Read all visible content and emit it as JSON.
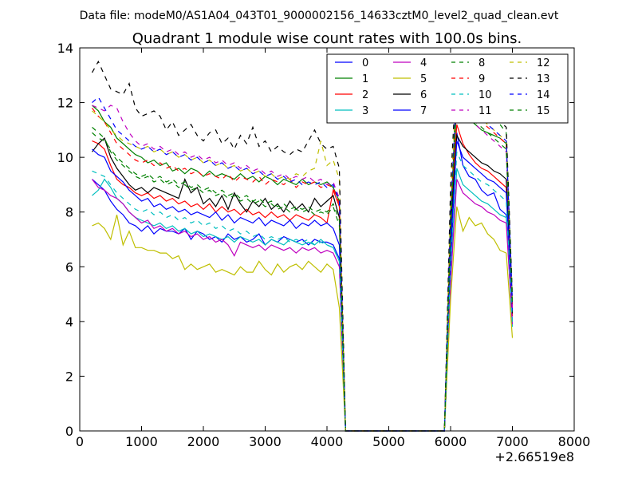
{
  "figure": {
    "suptitle": "Data file: modeM0/AS1A04_043T01_9000002156_14633cztM0_level2_quad_clean.evt"
  },
  "chart_data": {
    "type": "line",
    "title": "Quadrant 1 module wise count rates with 100.0s bins.",
    "xlabel": "",
    "ylabel": "",
    "x_offset_label": "+2.66519e8",
    "xlim": [
      0,
      8000
    ],
    "ylim": [
      0,
      14
    ],
    "xticks": [
      0,
      1000,
      2000,
      3000,
      4000,
      5000,
      6000,
      7000,
      8000
    ],
    "yticks": [
      0,
      2,
      4,
      6,
      8,
      10,
      12,
      14
    ],
    "grid": false,
    "legend_position": "top-right",
    "legend_columns": 4,
    "x": [
      200,
      300,
      400,
      500,
      600,
      700,
      800,
      900,
      1000,
      1100,
      1200,
      1300,
      1400,
      1500,
      1600,
      1700,
      1800,
      1900,
      2000,
      2100,
      2200,
      2300,
      2400,
      2500,
      2600,
      2700,
      2800,
      2900,
      3000,
      3100,
      3200,
      3300,
      3400,
      3500,
      3600,
      3700,
      3800,
      3900,
      4000,
      4100,
      4200,
      4300,
      4400,
      4500,
      4600,
      4700,
      4800,
      4900,
      5000,
      5100,
      5200,
      5300,
      5400,
      5500,
      5600,
      5700,
      5800,
      5900,
      6000,
      6100,
      6200,
      6300,
      6400,
      6500,
      6600,
      6700,
      6800,
      6900,
      7000
    ],
    "series": [
      {
        "name": "0",
        "color": "#0000ff",
        "dash": "solid",
        "values": [
          9.2,
          9.0,
          8.8,
          8.4,
          8.1,
          7.9,
          7.6,
          7.5,
          7.3,
          7.5,
          7.2,
          7.4,
          7.3,
          7.3,
          7.2,
          7.4,
          7.0,
          7.3,
          7.2,
          7.0,
          7.1,
          6.9,
          7.2,
          7.0,
          7.1,
          6.9,
          7.0,
          7.2,
          6.8,
          7.0,
          6.9,
          7.1,
          7.0,
          6.9,
          7.0,
          6.8,
          7.0,
          6.9,
          6.9,
          6.8,
          6.3,
          0,
          0,
          0,
          0,
          0,
          0,
          0,
          0,
          0,
          0,
          0,
          0,
          0,
          0,
          0,
          0,
          0,
          6.0,
          10.9,
          9.7,
          9.3,
          9.2,
          8.8,
          8.6,
          8.7,
          8.1,
          7.9,
          4.0
        ]
      },
      {
        "name": "1",
        "color": "#008000",
        "dash": "solid",
        "values": [
          11.9,
          11.7,
          11.3,
          11.1,
          10.7,
          10.5,
          10.3,
          10.1,
          10.0,
          9.8,
          9.9,
          9.7,
          9.8,
          9.5,
          9.6,
          9.4,
          9.6,
          9.5,
          9.3,
          9.5,
          9.3,
          9.4,
          9.3,
          9.2,
          9.4,
          9.2,
          9.3,
          9.1,
          9.3,
          9.2,
          9.0,
          9.2,
          9.1,
          9.0,
          9.2,
          9.0,
          9.1,
          9.0,
          9.1,
          8.9,
          8.4,
          0,
          0,
          0,
          0,
          0,
          0,
          0,
          0,
          0,
          0,
          0,
          0,
          0,
          0,
          0,
          0,
          0,
          8.0,
          11.9,
          11.5,
          11.4,
          11.2,
          11.0,
          10.9,
          10.8,
          10.7,
          10.5,
          4.6
        ]
      },
      {
        "name": "2",
        "color": "#ff0000",
        "dash": "solid",
        "values": [
          10.6,
          10.5,
          10.3,
          9.7,
          9.2,
          9.0,
          8.9,
          8.7,
          8.6,
          8.7,
          8.5,
          8.6,
          8.4,
          8.5,
          8.3,
          8.4,
          8.2,
          8.3,
          8.1,
          8.3,
          8.0,
          8.2,
          8.0,
          8.1,
          7.9,
          8.1,
          7.9,
          8.0,
          7.8,
          8.0,
          7.8,
          7.9,
          7.7,
          7.9,
          7.8,
          7.7,
          7.9,
          7.8,
          7.6,
          8.8,
          8.2,
          0,
          0,
          0,
          0,
          0,
          0,
          0,
          0,
          0,
          0,
          0,
          0,
          0,
          0,
          0,
          0,
          0,
          7.6,
          11.2,
          10.5,
          10.1,
          9.8,
          9.6,
          9.5,
          9.3,
          9.1,
          8.9,
          4.2
        ]
      },
      {
        "name": "3",
        "color": "#00bfbf",
        "dash": "solid",
        "values": [
          8.6,
          8.8,
          9.2,
          8.9,
          8.5,
          8.3,
          8.0,
          7.8,
          7.7,
          7.6,
          7.5,
          7.6,
          7.4,
          7.5,
          7.3,
          7.4,
          7.2,
          7.3,
          7.1,
          7.2,
          7.1,
          7.0,
          7.1,
          6.9,
          7.1,
          7.0,
          6.9,
          7.0,
          6.8,
          7.0,
          6.9,
          6.8,
          7.0,
          6.9,
          6.8,
          6.9,
          6.8,
          7.0,
          6.8,
          6.7,
          6.2,
          0,
          0,
          0,
          0,
          0,
          0,
          0,
          0,
          0,
          0,
          0,
          0,
          0,
          0,
          0,
          0,
          0,
          5.5,
          9.6,
          9.0,
          8.8,
          8.6,
          8.4,
          8.3,
          8.1,
          7.9,
          7.8,
          3.8
        ]
      },
      {
        "name": "4",
        "color": "#bf00bf",
        "dash": "solid",
        "values": [
          9.2,
          8.9,
          8.8,
          8.6,
          8.5,
          8.3,
          8.0,
          7.8,
          7.6,
          7.7,
          7.4,
          7.5,
          7.3,
          7.4,
          7.2,
          7.3,
          7.1,
          7.2,
          7.0,
          7.1,
          6.9,
          7.0,
          6.8,
          6.4,
          6.9,
          6.8,
          6.7,
          6.8,
          6.6,
          6.8,
          6.7,
          6.6,
          6.7,
          6.5,
          6.7,
          6.6,
          6.7,
          6.5,
          6.6,
          6.5,
          6.0,
          0,
          0,
          0,
          0,
          0,
          0,
          0,
          0,
          0,
          0,
          0,
          0,
          0,
          0,
          0,
          0,
          0,
          5.4,
          9.2,
          8.7,
          8.5,
          8.3,
          8.2,
          8.0,
          7.9,
          7.7,
          7.6,
          3.9
        ]
      },
      {
        "name": "5",
        "color": "#bfbf00",
        "dash": "solid",
        "values": [
          7.5,
          7.6,
          7.4,
          7.0,
          7.9,
          6.8,
          7.3,
          6.7,
          6.7,
          6.6,
          6.6,
          6.5,
          6.5,
          6.3,
          6.4,
          5.9,
          6.1,
          5.9,
          6.0,
          6.1,
          5.8,
          5.9,
          5.8,
          5.7,
          6.0,
          5.8,
          5.8,
          6.2,
          5.9,
          5.7,
          6.1,
          5.8,
          6.0,
          6.1,
          5.9,
          6.2,
          6.0,
          5.8,
          6.1,
          5.9,
          4.5,
          0,
          0,
          0,
          0,
          0,
          0,
          0,
          0,
          0,
          0,
          0,
          0,
          0,
          0,
          0,
          0,
          0,
          4.8,
          8.2,
          7.3,
          7.8,
          7.5,
          7.6,
          7.2,
          7.0,
          6.6,
          6.5,
          3.4
        ]
      },
      {
        "name": "6",
        "color": "#000000",
        "dash": "solid",
        "values": [
          10.2,
          10.5,
          10.7,
          10.0,
          9.6,
          9.3,
          9.0,
          8.8,
          8.9,
          8.7,
          8.9,
          8.8,
          8.7,
          8.6,
          8.5,
          9.2,
          8.7,
          8.9,
          8.3,
          8.5,
          8.2,
          8.6,
          8.1,
          8.7,
          8.3,
          8.0,
          8.4,
          8.2,
          8.5,
          8.1,
          8.3,
          8.0,
          8.4,
          8.1,
          8.3,
          8.0,
          8.5,
          8.2,
          8.4,
          8.6,
          7.8,
          0,
          0,
          0,
          0,
          0,
          0,
          0,
          0,
          0,
          0,
          0,
          0,
          0,
          0,
          0,
          0,
          0,
          7.4,
          10.8,
          10.4,
          10.2,
          10.0,
          9.8,
          9.7,
          9.5,
          9.4,
          9.2,
          4.3
        ]
      },
      {
        "name": "7",
        "color": "#0000ff",
        "dash": "solid",
        "values": [
          10.3,
          10.1,
          10.0,
          9.5,
          9.3,
          9.1,
          8.8,
          8.6,
          8.4,
          8.5,
          8.2,
          8.3,
          8.1,
          8.2,
          8.0,
          8.1,
          7.9,
          8.0,
          7.9,
          7.8,
          8.0,
          7.7,
          7.9,
          7.6,
          7.8,
          7.7,
          7.6,
          7.8,
          7.5,
          7.7,
          7.6,
          7.5,
          7.7,
          7.4,
          7.6,
          7.5,
          7.7,
          7.5,
          7.6,
          7.4,
          6.8,
          0,
          0,
          0,
          0,
          0,
          0,
          0,
          0,
          0,
          0,
          0,
          0,
          0,
          0,
          0,
          0,
          0,
          6.8,
          10.6,
          10.0,
          9.8,
          9.6,
          9.4,
          9.2,
          9.1,
          8.9,
          8.7,
          4.4
        ]
      },
      {
        "name": "8",
        "color": "#008000",
        "dash": "dashed",
        "values": [
          11.1,
          10.9,
          10.7,
          10.2,
          9.9,
          9.7,
          9.5,
          9.3,
          9.2,
          9.3,
          9.1,
          9.2,
          9.0,
          9.1,
          8.9,
          9.0,
          8.8,
          8.9,
          8.7,
          8.8,
          8.6,
          8.7,
          8.5,
          8.6,
          8.4,
          8.5,
          8.3,
          8.4,
          8.2,
          8.3,
          8.1,
          8.2,
          8.0,
          8.1,
          8.0,
          8.1,
          7.9,
          8.0,
          7.9,
          8.2,
          7.5,
          0,
          0,
          0,
          0,
          0,
          0,
          0,
          0,
          0,
          0,
          0,
          0,
          0,
          0,
          0,
          0,
          0,
          7.2,
          13.2,
          12.6,
          12.3,
          12.0,
          11.8,
          11.6,
          11.4,
          11.2,
          10.9,
          4.8
        ]
      },
      {
        "name": "9",
        "color": "#ff0000",
        "dash": "dashed",
        "values": [
          11.8,
          11.5,
          11.3,
          10.9,
          10.5,
          10.3,
          10.1,
          9.9,
          9.8,
          9.9,
          9.7,
          9.8,
          9.6,
          9.7,
          9.5,
          9.6,
          9.4,
          9.5,
          9.3,
          9.4,
          9.3,
          9.2,
          9.4,
          9.1,
          9.3,
          9.2,
          9.1,
          9.3,
          9.0,
          9.2,
          9.1,
          9.0,
          9.2,
          8.9,
          9.1,
          9.0,
          9.1,
          8.9,
          9.0,
          8.9,
          8.3,
          0,
          0,
          0,
          0,
          0,
          0,
          0,
          0,
          0,
          0,
          0,
          0,
          0,
          0,
          0,
          0,
          0,
          7.8,
          12.6,
          11.9,
          11.7,
          11.5,
          11.3,
          11.1,
          10.9,
          10.7,
          10.5,
          4.6
        ]
      },
      {
        "name": "10",
        "color": "#00bfbf",
        "dash": "dashed",
        "values": [
          9.5,
          9.4,
          9.3,
          9.0,
          8.7,
          8.5,
          8.3,
          8.1,
          8.0,
          8.1,
          7.9,
          8.0,
          7.8,
          7.9,
          7.7,
          7.8,
          7.6,
          7.7,
          7.5,
          7.6,
          7.4,
          7.5,
          7.3,
          7.4,
          7.2,
          7.3,
          7.1,
          7.2,
          7.0,
          7.1,
          7.0,
          7.1,
          6.9,
          7.0,
          6.9,
          7.0,
          6.8,
          6.9,
          6.8,
          6.7,
          6.2,
          0,
          0,
          0,
          0,
          0,
          0,
          0,
          0,
          0,
          0,
          0,
          0,
          0,
          0,
          0,
          0,
          0,
          6.0,
          10.2,
          9.7,
          9.5,
          9.3,
          9.1,
          9.0,
          8.8,
          8.6,
          8.4,
          3.9
        ]
      },
      {
        "name": "11",
        "color": "#bf00bf",
        "dash": "dashed",
        "values": [
          11.9,
          11.8,
          11.7,
          11.9,
          11.8,
          11.3,
          10.9,
          10.6,
          10.4,
          10.5,
          10.3,
          10.4,
          10.2,
          10.3,
          10.1,
          10.2,
          10.0,
          10.1,
          9.9,
          10.0,
          9.8,
          9.9,
          9.7,
          9.8,
          9.6,
          9.7,
          9.5,
          9.6,
          9.4,
          9.5,
          9.3,
          9.4,
          9.2,
          9.3,
          9.2,
          9.3,
          9.1,
          9.2,
          9.0,
          9.1,
          8.5,
          0,
          0,
          0,
          0,
          0,
          0,
          0,
          0,
          0,
          0,
          0,
          0,
          0,
          0,
          0,
          0,
          0,
          8.2,
          12.2,
          11.6,
          11.4,
          11.2,
          11.0,
          10.8,
          10.6,
          10.4,
          10.2,
          4.5
        ]
      },
      {
        "name": "12",
        "color": "#bfbf00",
        "dash": "dashed",
        "values": [
          11.7,
          11.5,
          11.3,
          11.0,
          10.8,
          10.6,
          10.5,
          10.4,
          10.3,
          10.4,
          10.2,
          10.3,
          10.1,
          10.2,
          10.0,
          10.1,
          9.9,
          10.0,
          9.8,
          9.9,
          9.7,
          9.8,
          9.6,
          9.7,
          9.5,
          9.6,
          9.4,
          9.5,
          9.3,
          9.4,
          9.2,
          9.3,
          9.2,
          9.4,
          9.3,
          9.5,
          9.6,
          10.6,
          9.7,
          9.9,
          9.2,
          0,
          0,
          0,
          0,
          0,
          0,
          0,
          0,
          0,
          0,
          0,
          0,
          0,
          0,
          0,
          0,
          0,
          8.5,
          12.9,
          12.1,
          11.8,
          11.6,
          11.4,
          11.2,
          11.0,
          10.8,
          10.6,
          4.7
        ]
      },
      {
        "name": "13",
        "color": "#000000",
        "dash": "dashed",
        "values": [
          13.1,
          13.5,
          13.0,
          12.5,
          12.4,
          12.3,
          12.7,
          11.8,
          11.5,
          11.6,
          11.7,
          11.5,
          11.0,
          11.3,
          10.8,
          11.0,
          11.2,
          10.8,
          10.6,
          10.9,
          11.0,
          10.5,
          10.7,
          10.3,
          10.8,
          10.5,
          11.1,
          10.4,
          10.6,
          10.2,
          10.4,
          10.2,
          10.1,
          10.3,
          10.2,
          10.6,
          11.0,
          10.5,
          10.3,
          10.4,
          9.6,
          0,
          0,
          0,
          0,
          0,
          0,
          0,
          0,
          0,
          0,
          0,
          0,
          0,
          0,
          0,
          0,
          0,
          9.0,
          13.4,
          12.8,
          12.5,
          12.2,
          12.0,
          11.8,
          11.6,
          11.3,
          11.1,
          4.9
        ]
      },
      {
        "name": "14",
        "color": "#0000ff",
        "dash": "dashed",
        "values": [
          12.0,
          12.2,
          11.8,
          11.4,
          11.0,
          10.8,
          10.6,
          10.4,
          10.3,
          10.4,
          10.2,
          10.3,
          10.1,
          10.2,
          10.0,
          10.1,
          9.9,
          10.0,
          9.8,
          9.9,
          9.7,
          9.8,
          9.6,
          9.7,
          9.5,
          9.6,
          9.4,
          9.5,
          9.3,
          9.4,
          9.2,
          9.3,
          9.1,
          9.2,
          9.0,
          9.1,
          9.0,
          9.1,
          8.9,
          9.0,
          8.4,
          0,
          0,
          0,
          0,
          0,
          0,
          0,
          0,
          0,
          0,
          0,
          0,
          0,
          0,
          0,
          0,
          0,
          7.9,
          12.8,
          12.1,
          11.8,
          11.6,
          11.4,
          11.2,
          11.0,
          10.8,
          10.6,
          4.7
        ]
      },
      {
        "name": "15",
        "color": "#008000",
        "dash": "dashed",
        "values": [
          10.9,
          10.7,
          10.6,
          10.3,
          10.0,
          9.8,
          9.6,
          9.4,
          9.3,
          9.4,
          9.2,
          9.3,
          9.1,
          9.2,
          9.0,
          9.1,
          8.9,
          9.0,
          8.8,
          8.9,
          8.7,
          8.8,
          8.6,
          8.7,
          8.5,
          8.6,
          8.4,
          8.5,
          8.3,
          8.4,
          8.2,
          8.3,
          8.1,
          8.2,
          8.1,
          8.2,
          8.0,
          8.1,
          8.0,
          8.3,
          7.7,
          0,
          0,
          0,
          0,
          0,
          0,
          0,
          0,
          0,
          0,
          0,
          0,
          0,
          0,
          0,
          0,
          0,
          7.5,
          12.5,
          11.8,
          11.5,
          11.3,
          11.1,
          10.9,
          10.7,
          10.5,
          10.3,
          4.6
        ]
      }
    ]
  }
}
